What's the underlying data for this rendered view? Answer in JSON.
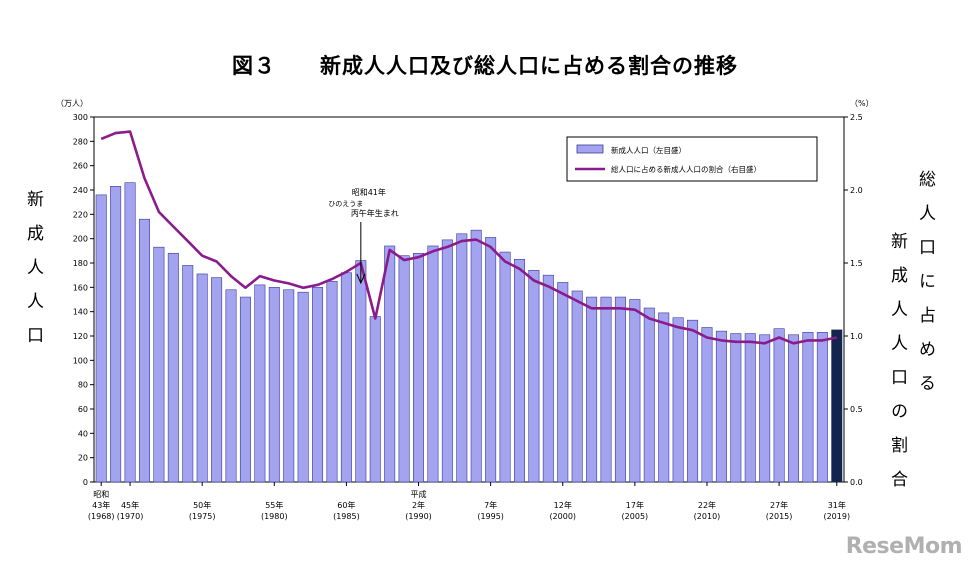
{
  "title": "図３　　新成人人口及び総人口に占める割合の推移",
  "left_axis_title": "新成人人口",
  "right_axis_title_1": "総人口に占める",
  "right_axis_title_2": "新成人人口の割合",
  "watermark": "ReseMom",
  "chart_data": {
    "type": "bar+line",
    "left_unit": "（万人）",
    "right_unit": "（%）",
    "ylim_left": [
      0,
      300
    ],
    "yticks_left": [
      "0",
      "20",
      "40",
      "60",
      "80",
      "100",
      "120",
      "140",
      "160",
      "180",
      "200",
      "220",
      "240",
      "260",
      "280",
      "300"
    ],
    "ylim_right": [
      0,
      2.5
    ],
    "yticks_right": [
      "0.0",
      "0.5",
      "1.0",
      "1.5",
      "2.0",
      "2.5"
    ],
    "legend": {
      "bar": "新成人人口（左目盛）",
      "line": "総人口に占める新成人人口の割合（右目盛）",
      "position": "top-right"
    },
    "annotation": {
      "line1": "昭和41年",
      "line2": "ひのえうま",
      "line3": "丙午年生まれ",
      "target_year": 1986
    },
    "x_years": [
      1968,
      1969,
      1970,
      1971,
      1972,
      1973,
      1974,
      1975,
      1976,
      1977,
      1978,
      1979,
      1980,
      1981,
      1982,
      1983,
      1984,
      1985,
      1986,
      1987,
      1988,
      1989,
      1990,
      1991,
      1992,
      1993,
      1994,
      1995,
      1996,
      1997,
      1998,
      1999,
      2000,
      2001,
      2002,
      2003,
      2004,
      2005,
      2006,
      2007,
      2008,
      2009,
      2010,
      2011,
      2012,
      2013,
      2014,
      2015,
      2016,
      2017,
      2018,
      2019
    ],
    "bars_10k": [
      236,
      243,
      246,
      216,
      193,
      188,
      178,
      171,
      168,
      158,
      152,
      162,
      160,
      158,
      156,
      160,
      165,
      172,
      182,
      136,
      194,
      186,
      188,
      194,
      199,
      204,
      207,
      201,
      189,
      183,
      174,
      170,
      164,
      157,
      152,
      152,
      152,
      150,
      143,
      139,
      135,
      133,
      127,
      124,
      122,
      122,
      121,
      126,
      121,
      123,
      123,
      125
    ],
    "ratio_pct": [
      2.35,
      2.39,
      2.4,
      2.08,
      1.85,
      1.75,
      1.65,
      1.55,
      1.51,
      1.41,
      1.33,
      1.41,
      1.38,
      1.36,
      1.33,
      1.35,
      1.39,
      1.44,
      1.5,
      1.12,
      1.59,
      1.52,
      1.54,
      1.58,
      1.61,
      1.65,
      1.66,
      1.61,
      1.51,
      1.46,
      1.38,
      1.34,
      1.29,
      1.24,
      1.19,
      1.19,
      1.19,
      1.18,
      1.12,
      1.09,
      1.06,
      1.04,
      0.99,
      0.97,
      0.96,
      0.96,
      0.95,
      0.99,
      0.95,
      0.97,
      0.97,
      0.99
    ],
    "highlight_last_bar": true,
    "colors": {
      "bar": "#a3a3f0",
      "bar_edge": "#3a3a9c",
      "bar_last": "#13244f",
      "line": "#8b1b8c"
    },
    "x_tick_labels": [
      {
        "year": 1968,
        "lines": [
          "昭和",
          "43年",
          "(1968)"
        ]
      },
      {
        "year": 1970,
        "lines": [
          "",
          "45年",
          "(1970)"
        ]
      },
      {
        "year": 1975,
        "lines": [
          "",
          "50年",
          "(1975)"
        ]
      },
      {
        "year": 1980,
        "lines": [
          "",
          "55年",
          "(1980)"
        ]
      },
      {
        "year": 1985,
        "lines": [
          "",
          "60年",
          "(1985)"
        ]
      },
      {
        "year": 1990,
        "lines": [
          "平成",
          "2年",
          "(1990)"
        ]
      },
      {
        "year": 1995,
        "lines": [
          "",
          "7年",
          "(1995)"
        ]
      },
      {
        "year": 2000,
        "lines": [
          "",
          "12年",
          "(2000)"
        ]
      },
      {
        "year": 2005,
        "lines": [
          "",
          "17年",
          "(2005)"
        ]
      },
      {
        "year": 2010,
        "lines": [
          "",
          "22年",
          "(2010)"
        ]
      },
      {
        "year": 2015,
        "lines": [
          "",
          "27年",
          "(2015)"
        ]
      },
      {
        "year": 2019,
        "lines": [
          "",
          "31年",
          "(2019)"
        ]
      }
    ]
  }
}
